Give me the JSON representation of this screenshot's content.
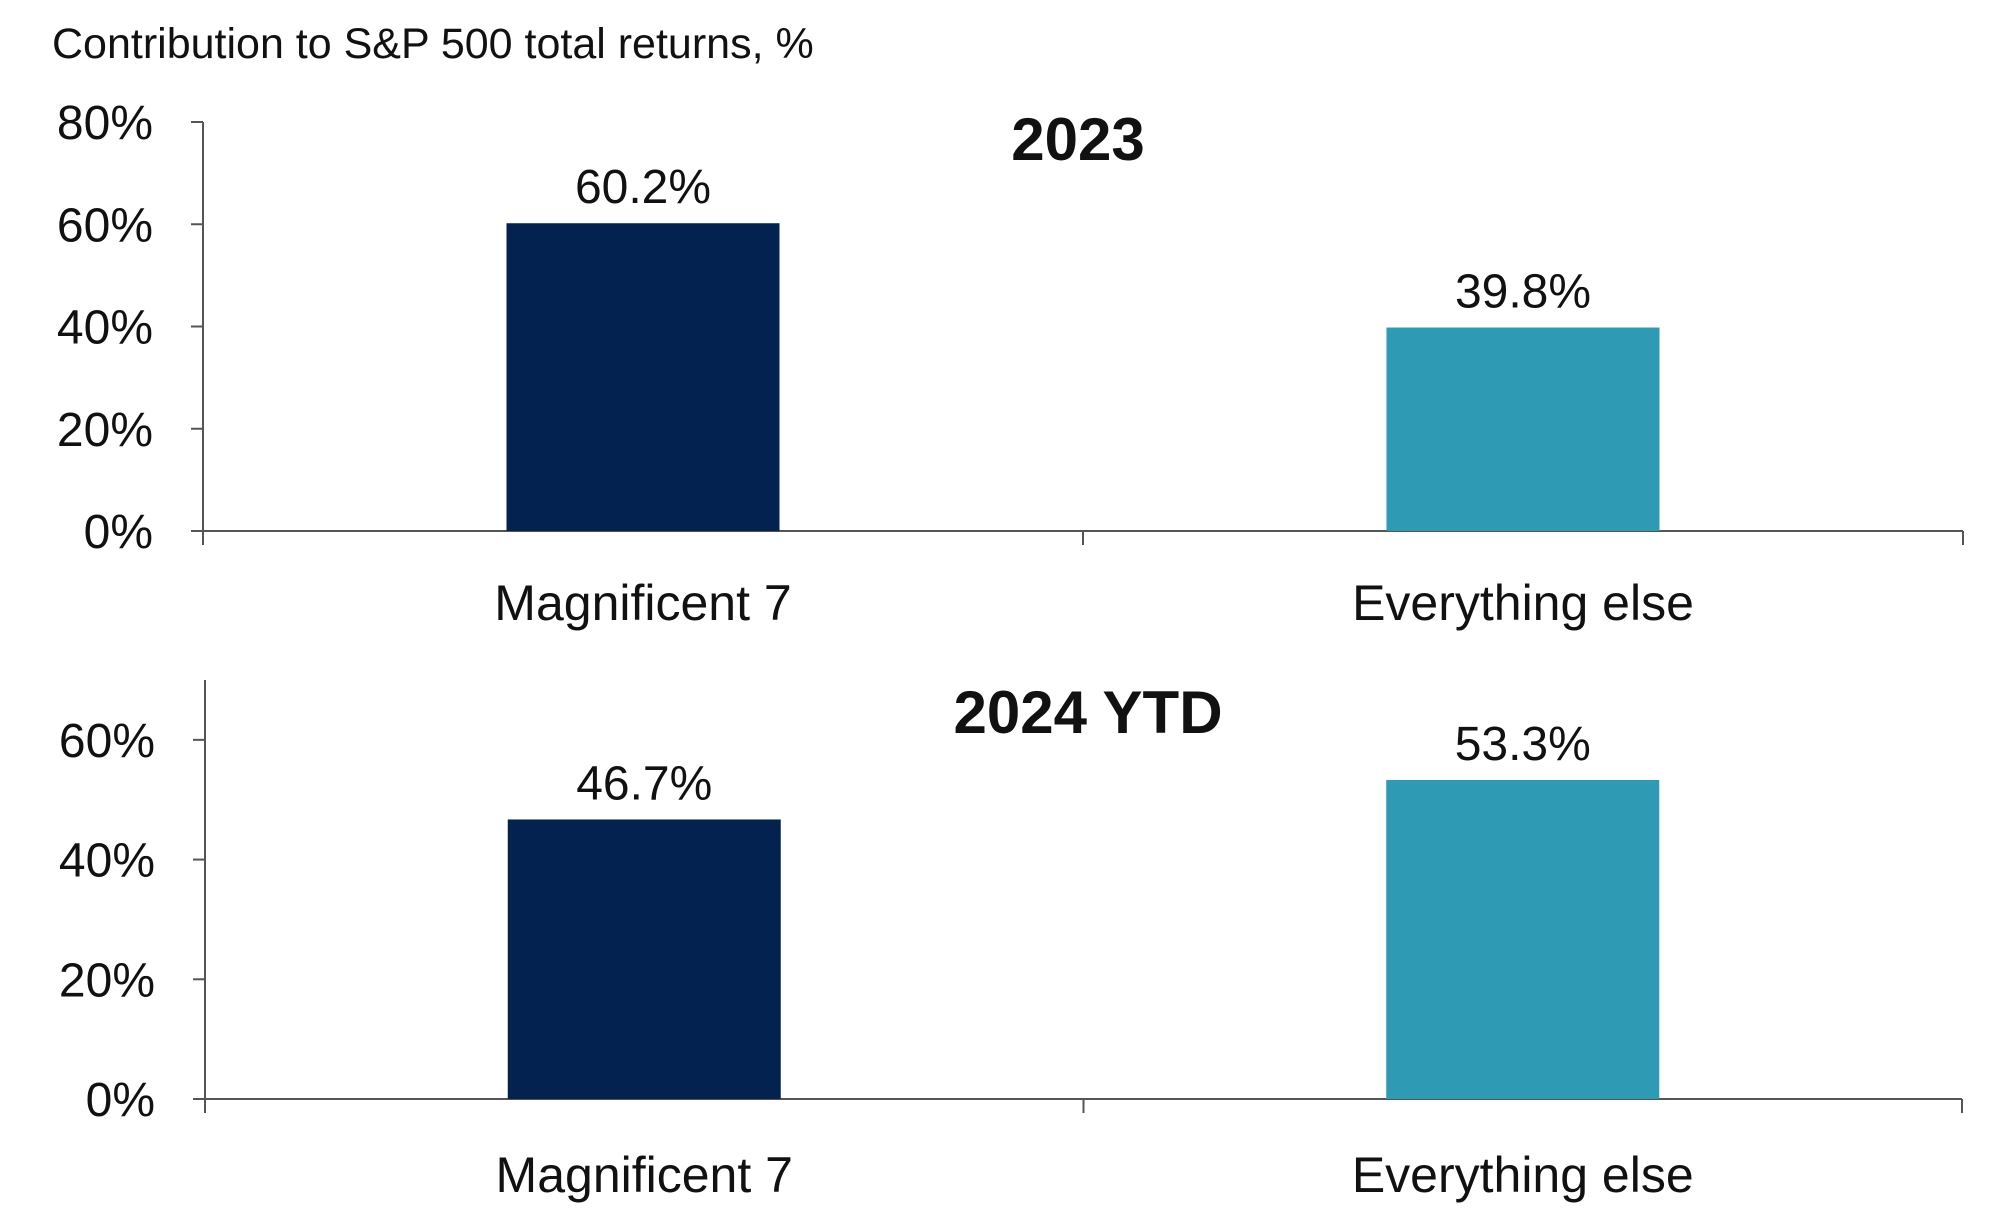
{
  "heading": "Contribution to S&P 500 total returns, %",
  "colors": {
    "magnificent_7": "#04224f",
    "everything_else": "#2e9ab4"
  },
  "chart_data": [
    {
      "type": "bar",
      "title": "2023",
      "categories": [
        "Magnificent 7",
        "Everything else"
      ],
      "values": [
        60.2,
        39.8
      ],
      "data_labels": [
        "60.2%",
        "39.8%"
      ],
      "ylim": [
        0,
        80
      ],
      "yticks": [
        0,
        20,
        40,
        60,
        80
      ],
      "ytick_labels": [
        "0%",
        "20%",
        "40%",
        "60%",
        "80%"
      ],
      "grid": false,
      "legend": "none"
    },
    {
      "type": "bar",
      "title": "2024 YTD",
      "categories": [
        "Magnificent 7",
        "Everything else"
      ],
      "values": [
        46.7,
        53.3
      ],
      "data_labels": [
        "46.7%",
        "53.3%"
      ],
      "ylim": [
        0,
        70
      ],
      "yticks": [
        0,
        20,
        40,
        60
      ],
      "ytick_labels": [
        "0%",
        "20%",
        "40%",
        "60%"
      ],
      "grid": false,
      "legend": "none"
    }
  ]
}
